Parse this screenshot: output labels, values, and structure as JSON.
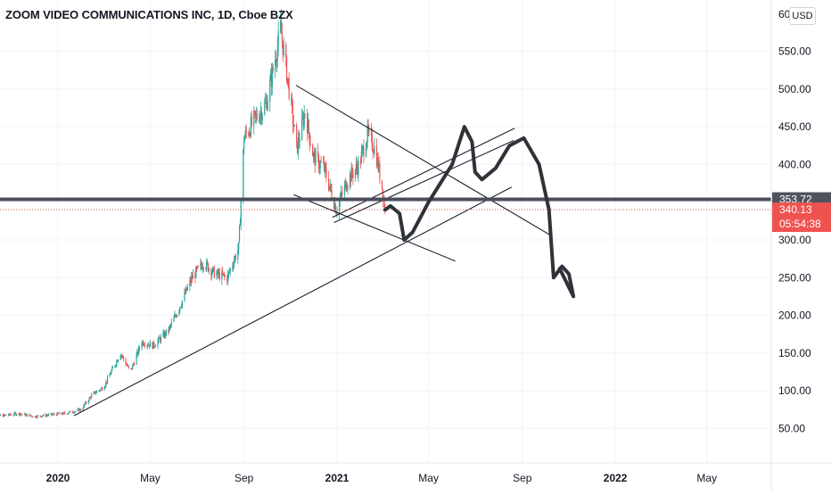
{
  "header": {
    "title": "ZOOM VIDEO COMMUNICATIONS INC, 1D, Cboe BZX"
  },
  "price_axis": {
    "currency": "USD",
    "top_partial_label": "60"
  },
  "colors": {
    "up": "#26a69a",
    "down": "#ef5350",
    "hline": "#4a4e5a",
    "drawing": "#2f3238",
    "price_badge": "#ef5350",
    "level_badge": "#50535e"
  },
  "markers": {
    "horizontal_level": {
      "price": 353.72,
      "label": "353.72"
    },
    "last_price": {
      "price": 340.13,
      "label": "340.13",
      "countdown": "05:54:38"
    }
  },
  "chart_data": {
    "type": "candlestick",
    "title": "ZOOM VIDEO COMMUNICATIONS INC, 1D, Cboe BZX",
    "ylim": [
      0,
      610
    ],
    "y_ticks": [
      50,
      100,
      150,
      200,
      250,
      300,
      350,
      400,
      450,
      500,
      550
    ],
    "y_tick_labels": [
      "50.00",
      "100.00",
      "150.00",
      "200.00",
      "250.00",
      "300.00",
      "350.00",
      "400.00",
      "450.00",
      "500.00",
      "550.00"
    ],
    "x_range": [
      "2019-10-01",
      "2022-08-01"
    ],
    "x_ticks": [
      {
        "date": "2020-01-01",
        "label": "2020"
      },
      {
        "date": "2020-05-01",
        "label": "May"
      },
      {
        "date": "2020-09-01",
        "label": "Sep"
      },
      {
        "date": "2021-01-01",
        "label": "2021"
      },
      {
        "date": "2021-05-01",
        "label": "May"
      },
      {
        "date": "2021-09-01",
        "label": "Sep"
      },
      {
        "date": "2022-01-01",
        "label": "2022"
      },
      {
        "date": "2022-05-01",
        "label": "May"
      }
    ],
    "price_path": [
      [
        "2019-10-01",
        68
      ],
      [
        "2019-10-20",
        67
      ],
      [
        "2019-11-10",
        70
      ],
      [
        "2019-12-01",
        66
      ],
      [
        "2019-12-20",
        68
      ],
      [
        "2020-01-10",
        70
      ],
      [
        "2020-01-31",
        75
      ],
      [
        "2020-02-15",
        95
      ],
      [
        "2020-03-01",
        105
      ],
      [
        "2020-03-23",
        150
      ],
      [
        "2020-04-05",
        125
      ],
      [
        "2020-04-20",
        165
      ],
      [
        "2020-05-05",
        160
      ],
      [
        "2020-05-25",
        180
      ],
      [
        "2020-06-10",
        215
      ],
      [
        "2020-06-25",
        250
      ],
      [
        "2020-07-10",
        270
      ],
      [
        "2020-07-25",
        255
      ],
      [
        "2020-08-10",
        250
      ],
      [
        "2020-08-25",
        290
      ],
      [
        "2020-09-01",
        435
      ],
      [
        "2020-09-15",
        460
      ],
      [
        "2020-09-30",
        480
      ],
      [
        "2020-10-10",
        530
      ],
      [
        "2020-10-19",
        580
      ],
      [
        "2020-10-30",
        500
      ],
      [
        "2020-11-09",
        420
      ],
      [
        "2020-11-20",
        470
      ],
      [
        "2020-12-01",
        410
      ],
      [
        "2020-12-15",
        395
      ],
      [
        "2020-12-31",
        340
      ],
      [
        "2021-01-15",
        380
      ],
      [
        "2021-01-30",
        400
      ],
      [
        "2021-02-10",
        440
      ],
      [
        "2021-02-20",
        420
      ],
      [
        "2021-03-01",
        370
      ],
      [
        "2021-03-05",
        340
      ]
    ],
    "trendlines": [
      {
        "name": "long-support",
        "from": [
          "2020-01-22",
          67
        ],
        "to": [
          "2021-08-18",
          370
        ]
      },
      {
        "name": "channel-top",
        "from": [
          "2020-11-08",
          505
        ],
        "to": [
          "2021-10-10",
          305
        ]
      },
      {
        "name": "channel-bottom",
        "from": [
          "2020-11-05",
          360
        ],
        "to": [
          "2021-06-05",
          272
        ]
      },
      {
        "name": "up-channel-a",
        "from": [
          "2020-12-26",
          330
        ],
        "to": [
          "2021-08-22",
          448
        ]
      },
      {
        "name": "up-channel-b",
        "from": [
          "2020-12-28",
          323
        ],
        "to": [
          "2021-08-21",
          432
        ]
      }
    ],
    "projection_path": [
      [
        "2021-03-05",
        340
      ],
      [
        "2021-03-12",
        345
      ],
      [
        "2021-03-24",
        335
      ],
      [
        "2021-03-30",
        300
      ],
      [
        "2021-04-10",
        310
      ],
      [
        "2021-05-01",
        350
      ],
      [
        "2021-06-01",
        400
      ],
      [
        "2021-06-17",
        450
      ],
      [
        "2021-06-27",
        430
      ],
      [
        "2021-07-01",
        390
      ],
      [
        "2021-07-10",
        380
      ],
      [
        "2021-07-28",
        395
      ],
      [
        "2021-08-15",
        425
      ],
      [
        "2021-09-03",
        435
      ],
      [
        "2021-09-23",
        400
      ],
      [
        "2021-10-06",
        340
      ],
      [
        "2021-10-12",
        250
      ],
      [
        "2021-10-23",
        265
      ],
      [
        "2021-11-01",
        255
      ],
      [
        "2021-11-07",
        225
      ],
      [
        "2021-10-20",
        262
      ]
    ]
  }
}
